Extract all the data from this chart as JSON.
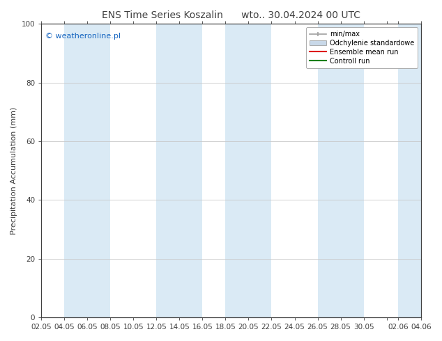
{
  "title": "ENS Time Series Koszalin      wto.. 30.04.2024 00 UTC",
  "ylabel": "Precipitation Accumulation (mm)",
  "ylim": [
    0,
    100
  ],
  "yticks": [
    0,
    20,
    40,
    60,
    80,
    100
  ],
  "xtick_labels": [
    "02.05",
    "04.05",
    "06.05",
    "08.05",
    "10.05",
    "12.05",
    "14.05",
    "16.05",
    "18.05",
    "20.05",
    "22.05",
    "24.05",
    "26.05",
    "28.05",
    "30.05",
    "",
    "02.06",
    "04.06"
  ],
  "xtick_days": [
    0,
    2,
    4,
    6,
    8,
    10,
    12,
    14,
    16,
    18,
    20,
    22,
    24,
    26,
    28,
    30,
    31,
    33
  ],
  "total_days": 33,
  "watermark": "© weatheronline.pl",
  "watermark_color": "#1565C0",
  "band_color": "#daeaf5",
  "band_day_starts": [
    2,
    10,
    16,
    24,
    31
  ],
  "band_day_widths": [
    4,
    4,
    4,
    4,
    3
  ],
  "bg_color": "#ffffff",
  "plot_bg_color": "#ffffff",
  "grid_color": "#c8c8c8",
  "title_fontsize": 10,
  "axis_fontsize": 7.5,
  "ylabel_fontsize": 8,
  "legend_fontsize": 7,
  "minmax_color": "#a0a0a0",
  "std_facecolor": "#c8d8e8",
  "std_edgecolor": "#a0a0a0",
  "ensemble_color": "#dd0000",
  "control_color": "#008000",
  "spine_color": "#404040",
  "tick_color": "#404040"
}
